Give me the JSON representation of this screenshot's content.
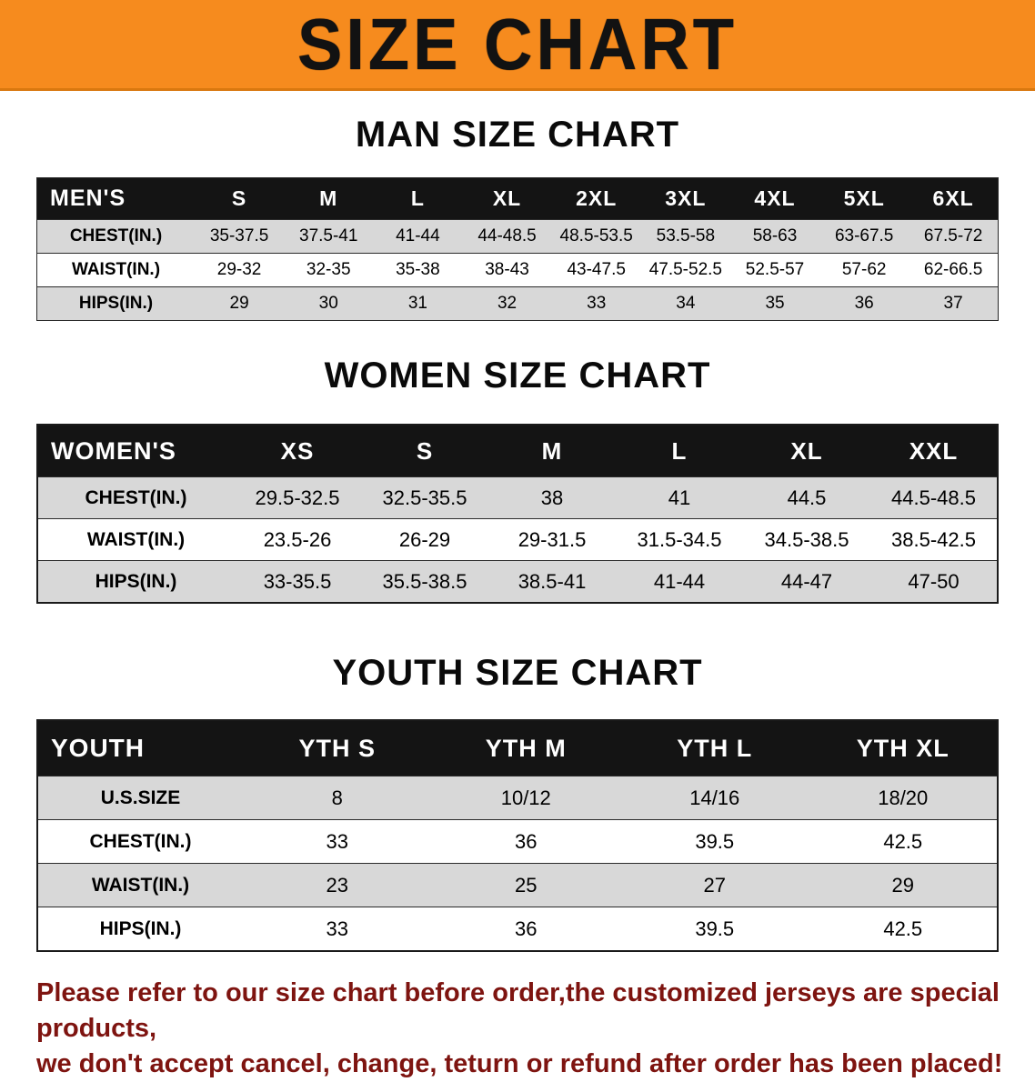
{
  "banner": {
    "title": "SIZE CHART",
    "bg_color": "#f68b1e",
    "text_color": "#121212"
  },
  "sections": [
    {
      "heading": "MAN SIZE CHART",
      "table": {
        "header": [
          "MEN'S",
          "S",
          "M",
          "L",
          "XL",
          "2XL",
          "3XL",
          "4XL",
          "5XL",
          "6XL"
        ],
        "rows": [
          {
            "label": "CHEST(IN.)",
            "values": [
              "35-37.5",
              "37.5-41",
              "41-44",
              "44-48.5",
              "48.5-53.5",
              "53.5-58",
              "58-63",
              "63-67.5",
              "67.5-72"
            ]
          },
          {
            "label": "WAIST(IN.)",
            "values": [
              "29-32",
              "32-35",
              "35-38",
              "38-43",
              "43-47.5",
              "47.5-52.5",
              "52.5-57",
              "57-62",
              "62-66.5"
            ]
          },
          {
            "label": "HIPS(IN.)",
            "values": [
              "29",
              "30",
              "31",
              "32",
              "33",
              "34",
              "35",
              "36",
              "37"
            ]
          }
        ]
      }
    },
    {
      "heading": "WOMEN SIZE CHART",
      "table": {
        "header": [
          "WOMEN'S",
          "XS",
          "S",
          "M",
          "L",
          "XL",
          "XXL"
        ],
        "rows": [
          {
            "label": "CHEST(IN.)",
            "values": [
              "29.5-32.5",
              "32.5-35.5",
              "38",
              "41",
              "44.5",
              "44.5-48.5"
            ]
          },
          {
            "label": "WAIST(IN.)",
            "values": [
              "23.5-26",
              "26-29",
              "29-31.5",
              "31.5-34.5",
              "34.5-38.5",
              "38.5-42.5"
            ]
          },
          {
            "label": "HIPS(IN.)",
            "values": [
              "33-35.5",
              "35.5-38.5",
              "38.5-41",
              "41-44",
              "44-47",
              "47-50"
            ]
          }
        ]
      }
    },
    {
      "heading": "YOUTH SIZE CHART",
      "table": {
        "header": [
          "YOUTH",
          "YTH S",
          "YTH M",
          "YTH L",
          "YTH XL"
        ],
        "rows": [
          {
            "label": "U.S.SIZE",
            "values": [
              "8",
              "10/12",
              "14/16",
              "18/20"
            ]
          },
          {
            "label": "CHEST(IN.)",
            "values": [
              "33",
              "36",
              "39.5",
              "42.5"
            ]
          },
          {
            "label": "WAIST(IN.)",
            "values": [
              "23",
              "25",
              "27",
              "29"
            ]
          },
          {
            "label": "HIPS(IN.)",
            "values": [
              "33",
              "36",
              "39.5",
              "42.5"
            ]
          }
        ]
      }
    }
  ],
  "footer": {
    "line1": "Please refer to our size chart before order,the customized jerseys are special products,",
    "line2": "we don't accept cancel, change, teturn or refund after order has been placed!",
    "text_color": "#7e1410"
  }
}
